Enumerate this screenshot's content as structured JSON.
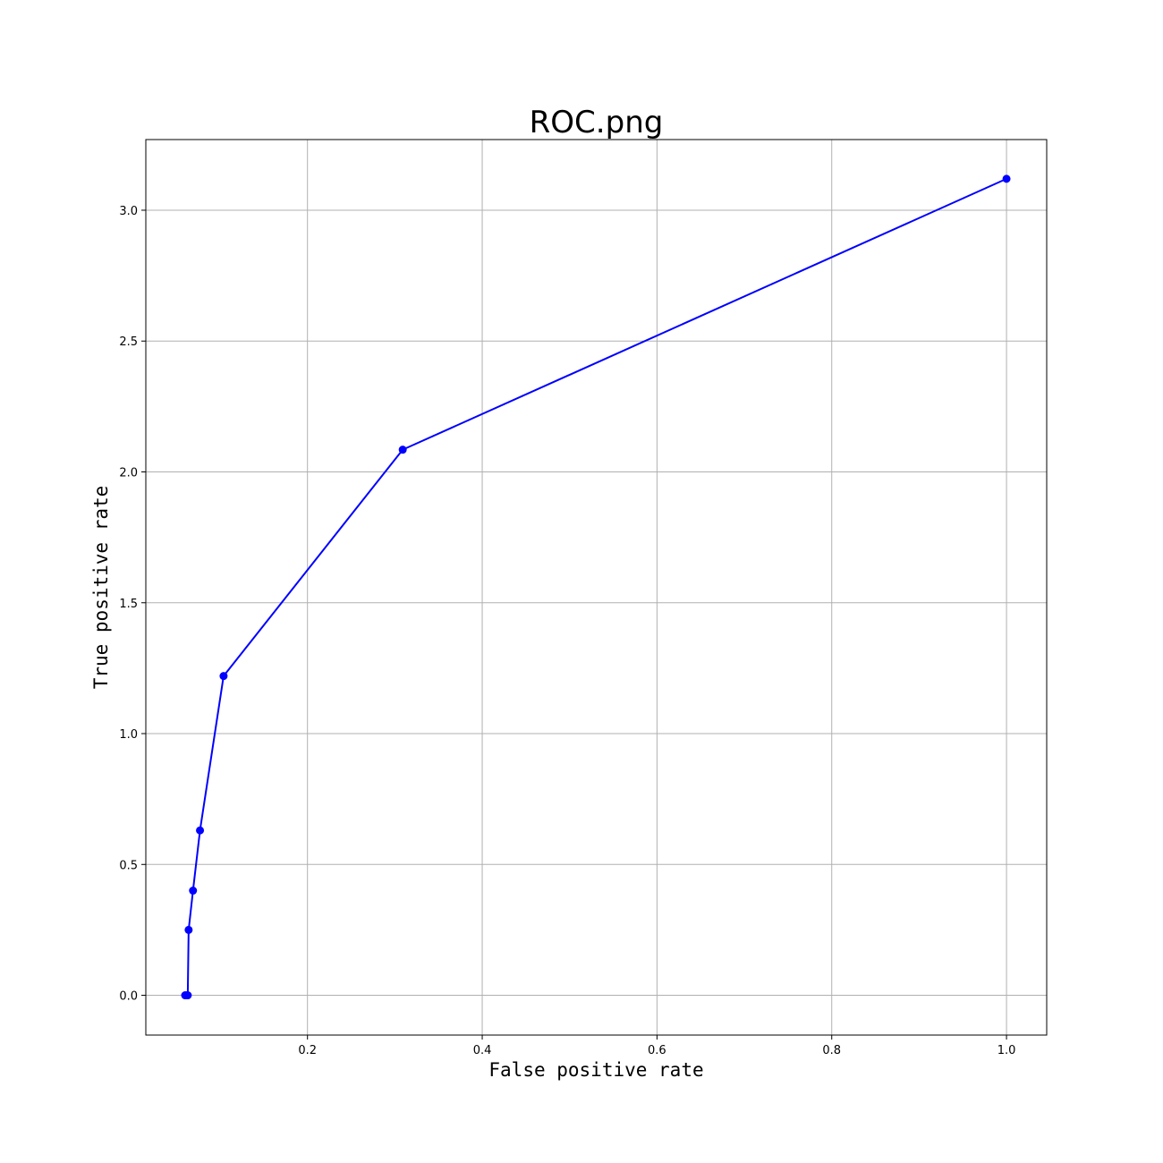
{
  "chart_data": {
    "type": "line",
    "title": "ROC.png",
    "xlabel": "False positive rate",
    "ylabel": "True positive rate",
    "xlim": [
      0.015,
      1.046
    ],
    "ylim": [
      -0.152,
      3.27
    ],
    "xticks": [
      0.2,
      0.4,
      0.6,
      0.8,
      1.0
    ],
    "xtick_labels": [
      "0.2",
      "0.4",
      "0.6",
      "0.8",
      "1.0"
    ],
    "yticks": [
      0.0,
      0.5,
      1.0,
      1.5,
      2.0,
      2.5,
      3.0
    ],
    "ytick_labels": [
      "0.0",
      "0.5",
      "1.0",
      "1.5",
      "2.0",
      "2.5",
      "3.0"
    ],
    "grid": true,
    "line_color": "#0000ff",
    "marker": "circle",
    "series": [
      {
        "x": [
          0.06,
          0.062,
          0.063,
          0.064,
          0.069,
          0.077,
          0.104,
          0.309,
          1.0
        ],
        "y": [
          0.0,
          0.0,
          0.0,
          0.25,
          0.4,
          0.63,
          1.22,
          2.085,
          3.12
        ]
      }
    ]
  }
}
